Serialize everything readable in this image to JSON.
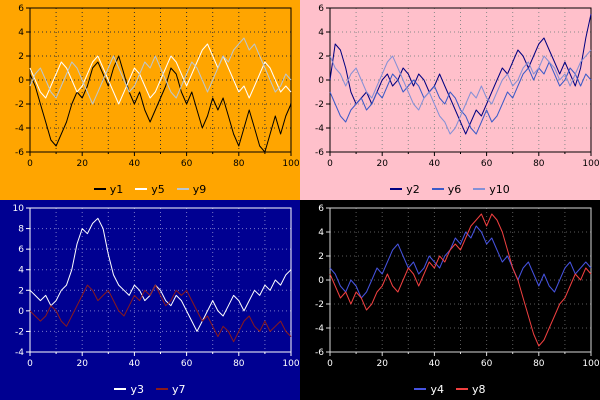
{
  "chart_data": [
    {
      "type": "line",
      "title": "",
      "xlabel": "",
      "ylabel": "",
      "legend_position": "bottom",
      "background": "#ffa500",
      "axis_color": "#000000",
      "text_color": "#000000",
      "grid_color": "#303030",
      "grid": true,
      "xlim": [
        0,
        100
      ],
      "ylim": [
        -6,
        6
      ],
      "xticks": [
        0,
        20,
        40,
        60,
        80,
        100
      ],
      "yticks": [
        -6,
        -4,
        -2,
        0,
        2,
        4,
        6
      ],
      "x_minor": 10,
      "x_start": 0,
      "x_step": 2,
      "series": [
        {
          "name": "y1",
          "color": "#000000",
          "values": [
            0.5,
            -0.5,
            -2,
            -3.5,
            -5,
            -5.5,
            -4.5,
            -3.5,
            -2,
            -1,
            -1.5,
            -0.5,
            1,
            1.5,
            0.5,
            -0.5,
            1,
            2,
            0.5,
            -1,
            -2,
            -1,
            -2.5,
            -3.5,
            -2.5,
            -1.5,
            -0.5,
            1,
            0.5,
            -1,
            -2,
            -1,
            -2.5,
            -4,
            -3,
            -1.5,
            -2.5,
            -1.5,
            -3,
            -4.5,
            -5.5,
            -4,
            -2.5,
            -4,
            -5.5,
            -6,
            -4.5,
            -3,
            -4.5,
            -3,
            -2
          ]
        },
        {
          "name": "y5",
          "color": "#ffffff",
          "values": [
            1,
            0,
            -1,
            -1.5,
            -0.5,
            0.5,
            1.5,
            1,
            0,
            -1,
            -0.5,
            0.5,
            1.5,
            2,
            1,
            0,
            -1,
            -2,
            -1,
            0,
            1,
            0.5,
            -0.5,
            -1.5,
            -1,
            0,
            1,
            2,
            1.5,
            0.5,
            -0.5,
            0.5,
            1.5,
            2.5,
            3,
            2,
            1,
            2,
            1,
            0,
            -1,
            -0.5,
            -1.5,
            -0.5,
            0.5,
            1.5,
            1,
            0,
            -1,
            -0.5,
            -1
          ]
        },
        {
          "name": "y9",
          "color": "#bcc6ce",
          "values": [
            -0.5,
            0.5,
            1,
            0,
            -1,
            -1.5,
            -0.5,
            0.5,
            1.5,
            1,
            0,
            -1,
            -2,
            -1,
            0,
            1,
            2,
            1,
            0,
            -1,
            -0.5,
            0.5,
            1.5,
            1,
            2,
            1,
            0,
            -1,
            -1.5,
            -0.5,
            0.5,
            1.5,
            1,
            0,
            -1,
            0,
            1,
            2,
            1.5,
            2.5,
            3,
            3.5,
            2.5,
            3,
            2,
            1,
            0,
            -1,
            -0.5,
            0.5,
            0
          ]
        }
      ]
    },
    {
      "type": "line",
      "title": "",
      "xlabel": "",
      "ylabel": "",
      "legend_position": "bottom",
      "background": "#ffc0cb",
      "axis_color": "#000000",
      "text_color": "#000000",
      "grid_color": "#8a8a8a",
      "grid": true,
      "xlim": [
        0,
        100
      ],
      "ylim": [
        -6,
        6
      ],
      "xticks": [
        0,
        20,
        40,
        60,
        80,
        100
      ],
      "yticks": [
        -6,
        -4,
        -2,
        0,
        2,
        4,
        6
      ],
      "x_minor": 10,
      "x_start": 0,
      "x_step": 2,
      "series": [
        {
          "name": "y2",
          "color": "#000080",
          "values": [
            0,
            3,
            2.5,
            1,
            -1,
            -2,
            -1.5,
            -1,
            -2,
            -1,
            0,
            0.5,
            -0.5,
            0,
            1,
            0.5,
            -0.5,
            0.5,
            0,
            -1,
            -0.5,
            0.5,
            -0.5,
            -1.5,
            -2.5,
            -3.5,
            -4.5,
            -3.5,
            -2.5,
            -3,
            -2,
            -1,
            0,
            1,
            0.5,
            1.5,
            2.5,
            2,
            1,
            2,
            3,
            3.5,
            2.5,
            1.5,
            0.5,
            1.5,
            0.5,
            -0.5,
            1,
            3.5,
            5.5
          ]
        },
        {
          "name": "y6",
          "color": "#3c5ac8",
          "values": [
            -1,
            -2,
            -3,
            -3.5,
            -2.5,
            -2,
            -1.5,
            -2.5,
            -2,
            -1,
            -1.5,
            -0.5,
            0.5,
            0,
            -1,
            -0.5,
            0,
            -0.5,
            -1.5,
            -1,
            -0.5,
            -1.5,
            -2,
            -1,
            -1.5,
            -2.5,
            -3,
            -4,
            -4.5,
            -3.5,
            -2.5,
            -3.5,
            -3,
            -2,
            -1,
            -1.5,
            -0.5,
            0.5,
            1,
            0,
            1,
            0.5,
            1.5,
            0.5,
            -0.5,
            0,
            1,
            0.5,
            -0.5,
            0.5,
            0
          ]
        },
        {
          "name": "y10",
          "color": "#8490d6",
          "values": [
            2,
            1,
            0.5,
            -0.5,
            0.5,
            1,
            0,
            -1,
            -1.5,
            -0.5,
            0.5,
            1.5,
            2,
            1,
            0,
            -1,
            -2,
            -2.5,
            -1.5,
            -1,
            -2,
            -3,
            -3.5,
            -4.5,
            -4,
            -3,
            -2,
            -1,
            -1.5,
            -0.5,
            -1.5,
            -2,
            -1,
            0,
            0.5,
            -0.5,
            0,
            1,
            1.5,
            0.5,
            1,
            2,
            1.5,
            1,
            0,
            0.5,
            -0.5,
            0.5,
            1.5,
            2,
            2.5
          ]
        }
      ]
    },
    {
      "type": "line",
      "title": "",
      "xlabel": "",
      "ylabel": "",
      "legend_position": "bottom",
      "background": "#000091",
      "axis_color": "#ffffff",
      "text_color": "#ffffff",
      "grid_color": "#7878c8",
      "grid": true,
      "xlim": [
        0,
        100
      ],
      "ylim": [
        -4,
        10
      ],
      "xticks": [
        0,
        20,
        40,
        60,
        80,
        100
      ],
      "yticks": [
        -4,
        -2,
        0,
        2,
        4,
        6,
        8,
        10
      ],
      "x_minor": 10,
      "x_start": 0,
      "x_step": 2,
      "series": [
        {
          "name": "y3",
          "color": "#ffffff",
          "values": [
            2,
            1.5,
            1,
            1.5,
            0.5,
            1,
            2,
            2.5,
            4,
            6.5,
            8,
            7.5,
            8.5,
            9,
            8,
            5.5,
            3.5,
            2.5,
            2,
            1.5,
            2.5,
            2,
            1,
            1.5,
            2.5,
            2,
            1,
            0.5,
            1.5,
            1,
            0,
            -1,
            -2,
            -1,
            0,
            1,
            0,
            -0.5,
            0.5,
            1.5,
            1,
            0,
            1,
            2,
            1.5,
            2.5,
            2,
            3,
            2.5,
            3.5,
            4
          ]
        },
        {
          "name": "y7",
          "color": "#8b1a1a",
          "values": [
            0,
            -0.5,
            -1,
            -0.5,
            0.5,
            0,
            -1,
            -1.5,
            -0.5,
            0.5,
            1.5,
            2.5,
            2,
            1,
            1.5,
            2,
            1,
            0,
            -0.5,
            0.5,
            1.5,
            1,
            2,
            1.5,
            2.5,
            1.5,
            0.5,
            1,
            2,
            1.5,
            2,
            1,
            0,
            -1,
            -0.5,
            -1.5,
            -2.5,
            -1.5,
            -2,
            -3,
            -2,
            -1,
            -0.5,
            -1.5,
            -2,
            -1,
            -2,
            -1.5,
            -1,
            -2,
            -2.5
          ]
        }
      ]
    },
    {
      "type": "line",
      "title": "",
      "xlabel": "",
      "ylabel": "",
      "legend_position": "bottom",
      "background": "#000000",
      "axis_color": "#d9d9d9",
      "text_color": "#ffffff",
      "grid_color": "#5a5a5a",
      "grid": true,
      "xlim": [
        0,
        100
      ],
      "ylim": [
        -6,
        6
      ],
      "xticks": [
        0,
        20,
        40,
        60,
        80,
        100
      ],
      "yticks": [
        -6,
        -4,
        -2,
        0,
        2,
        4,
        6
      ],
      "x_minor": 10,
      "x_start": 0,
      "x_step": 2,
      "series": [
        {
          "name": "y4",
          "color": "#4653e0",
          "values": [
            1,
            0.5,
            -0.5,
            -1,
            0,
            -0.5,
            -1.5,
            -1,
            0,
            1,
            0.5,
            1.5,
            2.5,
            3,
            2,
            1,
            1.5,
            0.5,
            1,
            2,
            1.5,
            1,
            2,
            2.5,
            3.5,
            3,
            4,
            3.5,
            4.5,
            4,
            3,
            3.5,
            2.5,
            1.5,
            2,
            1,
            0,
            1,
            1.5,
            0.5,
            -0.5,
            0.5,
            -0.5,
            -1,
            0,
            1,
            1.5,
            0.5,
            1,
            1.5,
            1
          ]
        },
        {
          "name": "y8",
          "color": "#f04040",
          "values": [
            0.5,
            -0.5,
            -1.5,
            -1,
            -2,
            -1,
            -1.5,
            -2.5,
            -2,
            -1,
            -0.5,
            0.5,
            -0.5,
            -1,
            0,
            1,
            0.5,
            -0.5,
            0.5,
            1.5,
            1,
            2,
            1.5,
            2.5,
            3,
            2.5,
            3.5,
            4.5,
            5,
            5.5,
            4.5,
            5.5,
            5,
            4,
            2.5,
            1,
            0,
            -1.5,
            -3,
            -4.5,
            -5.5,
            -5,
            -4,
            -3,
            -2,
            -1.5,
            -0.5,
            0.5,
            0,
            1,
            0.5
          ]
        }
      ]
    }
  ]
}
